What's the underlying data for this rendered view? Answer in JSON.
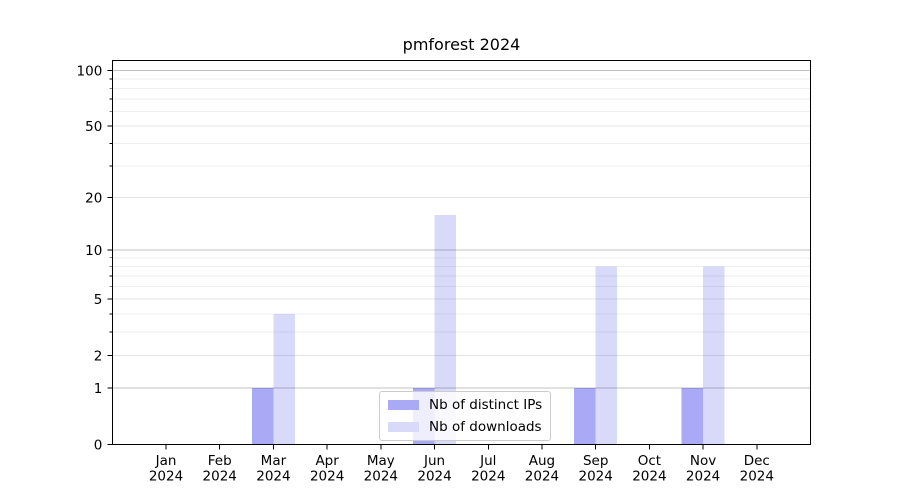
{
  "chart_data": {
    "type": "bar",
    "title": "pmforest 2024",
    "x_months": [
      "Jan",
      "Feb",
      "Mar",
      "Apr",
      "May",
      "Jun",
      "Jul",
      "Aug",
      "Sep",
      "Oct",
      "Nov",
      "Dec"
    ],
    "x_year_label": "2024",
    "series": [
      {
        "name": "Nb of distinct IPs",
        "color": "#a9a9f5",
        "bar_fill": "rgba(2,2,226,0.34)",
        "values": [
          0,
          0,
          1,
          0,
          0,
          1,
          0,
          0,
          1,
          0,
          1,
          0
        ]
      },
      {
        "name": "Nb of downloads",
        "color": "#d9d9f9",
        "bar_fill": "rgba(2,2,215,0.15)",
        "values": [
          0,
          0,
          4,
          0,
          0,
          16,
          0,
          0,
          8,
          0,
          8,
          0
        ]
      }
    ],
    "y_scale": "log1p",
    "y_axis_ticks": [
      0,
      1,
      2,
      5,
      10,
      20,
      50,
      100
    ],
    "y_decade_ticks": [
      1,
      10,
      100
    ],
    "y_minor_ticks": [
      3,
      4,
      6,
      7,
      8,
      9,
      30,
      40,
      60,
      70,
      80,
      90
    ],
    "ylim": [
      0,
      113
    ],
    "grid": true,
    "legend_position": "lower center inside"
  },
  "colors": {
    "background": "#ffffff",
    "spine": "#000000",
    "text": "#000000",
    "grid_decade": "#c2c2c2",
    "grid_labeled": "#e4e4e4",
    "grid_minor": "#eeeeee",
    "legend_border": "#cccccc"
  }
}
